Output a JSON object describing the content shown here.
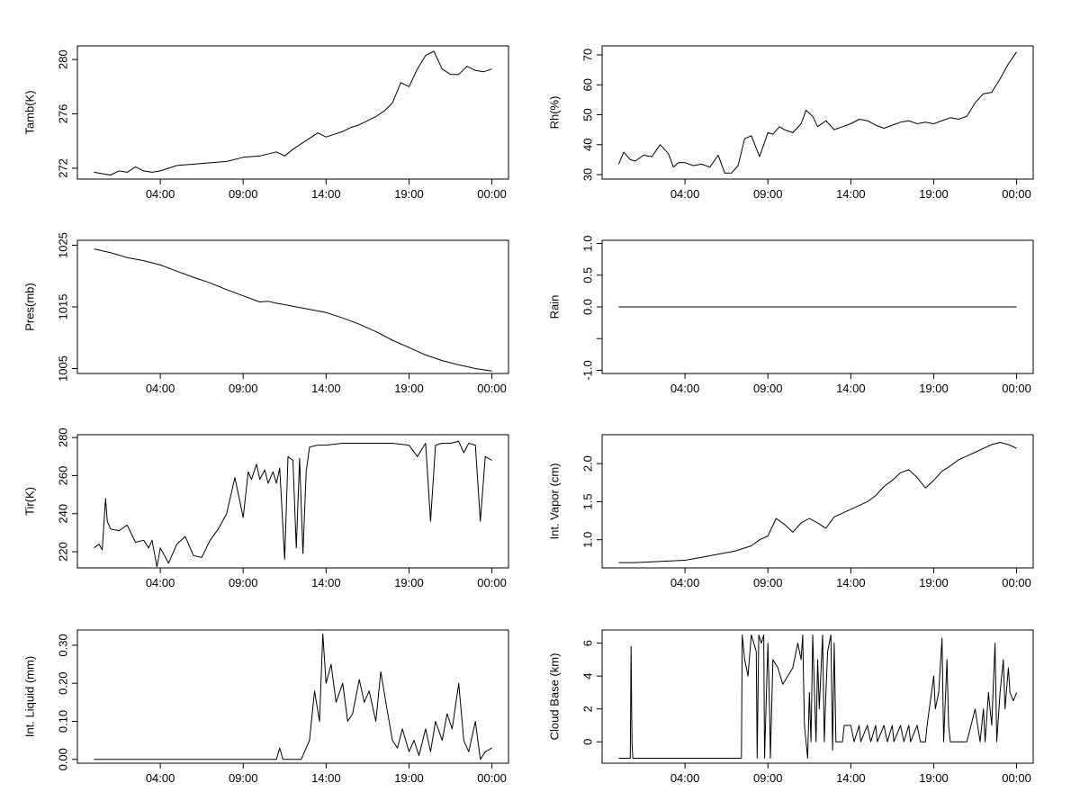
{
  "chart_data": [
    {
      "type": "line",
      "ylabel": "Tamb(K)",
      "x_tick_labels": [
        "04:00",
        "09:00",
        "14:00",
        "19:00",
        "00:00"
      ],
      "x_ticks_hours": [
        4,
        9,
        14,
        19,
        24
      ],
      "xlim_hours": [
        -1,
        25
      ],
      "y_ticks": [
        272,
        276,
        280
      ],
      "ylim": [
        271.2,
        281.0
      ],
      "x_hours": [
        0.0,
        0.5,
        1.0,
        1.5,
        2.0,
        2.5,
        3.0,
        3.5,
        4.0,
        4.5,
        5.0,
        6.0,
        7.0,
        8.0,
        9.0,
        10.0,
        11.0,
        11.5,
        12.0,
        12.5,
        13.0,
        13.5,
        14.0,
        14.5,
        15.0,
        15.5,
        16.0,
        16.5,
        17.0,
        17.5,
        18.0,
        18.5,
        19.0,
        19.5,
        20.0,
        20.5,
        21.0,
        21.5,
        22.0,
        22.5,
        23.0,
        23.5,
        24.0
      ],
      "values": [
        271.7,
        271.6,
        271.5,
        271.8,
        271.7,
        272.1,
        271.8,
        271.7,
        271.8,
        272.0,
        272.2,
        272.3,
        272.4,
        272.5,
        272.8,
        272.9,
        273.2,
        272.9,
        273.4,
        273.8,
        274.2,
        274.6,
        274.3,
        274.5,
        274.7,
        275.0,
        275.2,
        275.5,
        275.8,
        276.2,
        276.8,
        278.3,
        278.0,
        279.3,
        280.3,
        280.6,
        279.3,
        278.9,
        278.9,
        279.5,
        279.2,
        279.1,
        279.3
      ]
    },
    {
      "type": "line",
      "ylabel": "Rh(%)",
      "x_tick_labels": [
        "04:00",
        "09:00",
        "14:00",
        "19:00",
        "00:00"
      ],
      "x_ticks_hours": [
        4,
        9,
        14,
        19,
        24
      ],
      "xlim_hours": [
        -1,
        25
      ],
      "y_ticks": [
        30,
        40,
        50,
        60,
        70
      ],
      "ylim": [
        28.5,
        73.0
      ],
      "x_hours": [
        0.0,
        0.3,
        0.7,
        1.0,
        1.5,
        2.0,
        2.5,
        3.0,
        3.3,
        3.6,
        4.0,
        4.5,
        5.0,
        5.5,
        6.0,
        6.4,
        6.8,
        7.2,
        7.6,
        8.0,
        8.5,
        9.0,
        9.3,
        9.7,
        10.0,
        10.5,
        11.0,
        11.3,
        11.7,
        12.0,
        12.5,
        13.0,
        13.5,
        14.0,
        14.5,
        15.0,
        15.5,
        16.0,
        16.5,
        17.0,
        17.5,
        18.0,
        18.5,
        19.0,
        19.5,
        20.0,
        20.5,
        21.0,
        21.5,
        22.0,
        22.5,
        23.0,
        23.5,
        24.0
      ],
      "values": [
        33.5,
        37.5,
        35.0,
        34.5,
        36.5,
        36.0,
        40.0,
        37.0,
        32.5,
        34.0,
        34.0,
        33.0,
        33.5,
        32.5,
        36.5,
        30.5,
        30.5,
        33.0,
        42.0,
        43.0,
        36.0,
        44.0,
        43.5,
        46.0,
        45.0,
        44.0,
        47.0,
        51.5,
        49.5,
        46.0,
        48.0,
        45.0,
        46.0,
        47.0,
        48.5,
        48.0,
        46.5,
        45.5,
        46.5,
        47.5,
        48.0,
        47.0,
        47.5,
        47.0,
        48.0,
        49.0,
        48.5,
        49.5,
        54.0,
        57.0,
        57.5,
        62.0,
        67.0,
        71.0
      ]
    },
    {
      "type": "line",
      "ylabel": "Pres(mb)",
      "x_tick_labels": [
        "04:00",
        "09:00",
        "14:00",
        "19:00",
        "00:00"
      ],
      "x_ticks_hours": [
        4,
        9,
        14,
        19,
        24
      ],
      "xlim_hours": [
        -1,
        25
      ],
      "y_ticks": [
        1005,
        1015,
        1025
      ],
      "ylim": [
        1004.2,
        1025.8
      ],
      "x_hours": [
        0.0,
        1.0,
        2.0,
        3.0,
        4.0,
        5.0,
        6.0,
        7.0,
        8.0,
        9.0,
        10.0,
        10.5,
        11.0,
        12.0,
        13.0,
        14.0,
        15.0,
        16.0,
        17.0,
        18.0,
        19.0,
        20.0,
        21.0,
        22.0,
        23.0,
        24.0
      ],
      "values": [
        1024.4,
        1023.8,
        1023.0,
        1022.5,
        1021.8,
        1020.8,
        1019.8,
        1018.9,
        1017.8,
        1016.8,
        1015.8,
        1015.9,
        1015.6,
        1015.1,
        1014.6,
        1014.1,
        1013.2,
        1012.2,
        1011.0,
        1009.6,
        1008.4,
        1007.2,
        1006.3,
        1005.6,
        1005.0,
        1004.6
      ]
    },
    {
      "type": "line",
      "ylabel": "Rain",
      "x_tick_labels": [
        "04:00",
        "09:00",
        "14:00",
        "19:00",
        "00:00"
      ],
      "x_ticks_hours": [
        4,
        9,
        14,
        19,
        24
      ],
      "xlim_hours": [
        -1,
        25
      ],
      "y_ticks": [
        -1.0,
        -0.5,
        0.0,
        0.5,
        1.0
      ],
      "y_tick_labels": [
        "-1.0",
        "",
        "0.0",
        "0.5",
        "1.0"
      ],
      "ylim": [
        -1.05,
        1.05
      ],
      "x_hours": [
        0.0,
        24.0
      ],
      "values": [
        0.0,
        0.0
      ]
    },
    {
      "type": "line",
      "ylabel": "Tir(K)",
      "x_tick_labels": [
        "04:00",
        "09:00",
        "14:00",
        "19:00",
        "00:00"
      ],
      "x_ticks_hours": [
        4,
        9,
        14,
        19,
        24
      ],
      "xlim_hours": [
        -1,
        25
      ],
      "y_ticks": [
        220,
        240,
        260,
        280
      ],
      "ylim": [
        211.5,
        281.5
      ],
      "x_hours": [
        0.0,
        0.3,
        0.5,
        0.7,
        0.8,
        1.0,
        1.5,
        2.0,
        2.5,
        3.0,
        3.3,
        3.5,
        3.8,
        4.0,
        4.5,
        5.0,
        5.5,
        6.0,
        6.5,
        7.0,
        7.5,
        8.0,
        8.5,
        9.0,
        9.3,
        9.5,
        9.8,
        10.0,
        10.3,
        10.5,
        10.8,
        11.0,
        11.2,
        11.5,
        11.7,
        12.0,
        12.2,
        12.4,
        12.6,
        12.8,
        13.0,
        13.5,
        14.0,
        15.0,
        16.0,
        17.0,
        18.0,
        19.0,
        19.5,
        20.0,
        20.3,
        20.6,
        21.0,
        21.5,
        22.0,
        22.3,
        22.6,
        23.0,
        23.3,
        23.6,
        24.0
      ],
      "values": [
        222,
        224,
        221,
        248,
        236,
        232,
        231,
        234,
        225,
        226,
        222,
        226,
        212,
        222,
        214,
        224,
        228,
        218,
        217,
        226,
        232,
        240,
        259,
        238,
        262,
        258,
        266,
        258,
        263,
        256,
        262,
        256,
        264,
        216,
        270,
        268,
        222,
        269,
        219,
        262,
        275,
        276,
        276,
        277,
        277,
        277,
        277,
        276,
        270,
        277,
        236,
        276,
        277,
        277,
        278,
        272,
        277,
        276,
        236,
        270,
        268
      ]
    },
    {
      "type": "line",
      "ylabel": "Int. Vapor (cm)",
      "x_tick_labels": [
        "04:00",
        "09:00",
        "14:00",
        "19:00",
        "00:00"
      ],
      "x_ticks_hours": [
        4,
        9,
        14,
        19,
        24
      ],
      "xlim_hours": [
        -1,
        25
      ],
      "y_ticks": [
        1.0,
        1.5,
        2.0
      ],
      "y_tick_labels": [
        "1.0",
        "1.5",
        "2.0"
      ],
      "ylim": [
        0.63,
        2.38
      ],
      "x_hours": [
        0.0,
        1.0,
        2.0,
        3.0,
        4.0,
        5.0,
        6.0,
        7.0,
        8.0,
        8.5,
        9.0,
        9.5,
        10.0,
        10.5,
        11.0,
        11.5,
        12.0,
        12.5,
        13.0,
        13.5,
        14.0,
        14.5,
        15.0,
        15.5,
        16.0,
        16.5,
        17.0,
        17.5,
        18.0,
        18.5,
        19.0,
        19.5,
        20.0,
        20.5,
        21.0,
        21.5,
        22.0,
        22.5,
        23.0,
        23.5,
        24.0
      ],
      "values": [
        0.7,
        0.7,
        0.71,
        0.72,
        0.73,
        0.77,
        0.81,
        0.85,
        0.92,
        1.0,
        1.05,
        1.28,
        1.2,
        1.1,
        1.22,
        1.28,
        1.22,
        1.15,
        1.3,
        1.35,
        1.4,
        1.45,
        1.5,
        1.58,
        1.7,
        1.78,
        1.88,
        1.92,
        1.82,
        1.68,
        1.78,
        1.9,
        1.97,
        2.05,
        2.1,
        2.15,
        2.2,
        2.25,
        2.28,
        2.25,
        2.2
      ]
    },
    {
      "type": "line",
      "ylabel": "Int. Liquid (mm)",
      "x_tick_labels": [
        "04:00",
        "09:00",
        "14:00",
        "19:00",
        "00:00"
      ],
      "x_ticks_hours": [
        4,
        9,
        14,
        19,
        24
      ],
      "xlim_hours": [
        -1,
        25
      ],
      "y_ticks": [
        0.0,
        0.1,
        0.2,
        0.3
      ],
      "y_tick_labels": [
        "0.00",
        "0.10",
        "0.20",
        "0.30"
      ],
      "ylim": [
        -0.01,
        0.34
      ],
      "x_hours": [
        0.0,
        11.0,
        11.2,
        11.4,
        11.6,
        12.0,
        12.5,
        13.0,
        13.3,
        13.6,
        13.8,
        14.0,
        14.3,
        14.6,
        15.0,
        15.3,
        15.6,
        16.0,
        16.3,
        16.6,
        17.0,
        17.3,
        17.6,
        18.0,
        18.3,
        18.6,
        19.0,
        19.3,
        19.6,
        20.0,
        20.3,
        20.6,
        21.0,
        21.3,
        21.6,
        22.0,
        22.3,
        22.6,
        23.0,
        23.3,
        23.6,
        24.0
      ],
      "values": [
        0.0,
        0.0,
        0.03,
        0.0,
        0.0,
        0.0,
        0.0,
        0.05,
        0.18,
        0.1,
        0.33,
        0.2,
        0.25,
        0.15,
        0.2,
        0.1,
        0.12,
        0.21,
        0.15,
        0.18,
        0.1,
        0.23,
        0.15,
        0.05,
        0.03,
        0.08,
        0.02,
        0.05,
        0.01,
        0.08,
        0.02,
        0.1,
        0.05,
        0.12,
        0.08,
        0.2,
        0.05,
        0.02,
        0.1,
        0.0,
        0.02,
        0.03
      ]
    },
    {
      "type": "line",
      "ylabel": "Cloud Base (km)",
      "x_tick_labels": [
        "04:00",
        "09:00",
        "14:00",
        "19:00",
        "00:00"
      ],
      "x_ticks_hours": [
        4,
        9,
        14,
        19,
        24
      ],
      "xlim_hours": [
        -1,
        25
      ],
      "y_ticks": [
        0,
        2,
        4,
        6
      ],
      "ylim": [
        -1.3,
        6.8
      ],
      "x_hours": [
        0.0,
        0.7,
        0.75,
        0.8,
        0.85,
        7.4,
        7.45,
        7.6,
        7.8,
        8.0,
        8.3,
        8.35,
        8.45,
        8.6,
        8.75,
        8.8,
        9.0,
        9.1,
        9.15,
        9.3,
        9.6,
        9.9,
        10.2,
        10.5,
        10.8,
        11.0,
        11.1,
        11.2,
        11.4,
        11.5,
        11.6,
        11.7,
        11.9,
        12.0,
        12.1,
        12.3,
        12.4,
        12.5,
        12.6,
        12.8,
        12.9,
        13.0,
        13.1,
        13.5,
        13.6,
        14.0,
        14.2,
        14.5,
        14.6,
        15.0,
        15.2,
        15.5,
        15.6,
        16.0,
        16.2,
        16.5,
        16.6,
        17.0,
        17.2,
        17.5,
        17.6,
        18.0,
        18.2,
        18.5,
        18.6,
        19.0,
        19.1,
        19.3,
        19.5,
        19.6,
        19.8,
        19.9,
        20.0,
        20.2,
        20.5,
        20.8,
        21.0,
        21.5,
        21.8,
        22.0,
        22.1,
        22.3,
        22.5,
        22.7,
        22.8,
        23.0,
        23.2,
        23.3,
        23.5,
        23.6,
        23.8,
        24.0
      ],
      "values": [
        -1.0,
        -1.0,
        5.8,
        0.0,
        -1.0,
        -1.0,
        6.5,
        5.0,
        4.0,
        6.5,
        5.5,
        -1.0,
        6.5,
        6.0,
        6.5,
        -1.0,
        6.0,
        2.0,
        -1.0,
        5.0,
        4.5,
        3.5,
        4.0,
        4.5,
        6.0,
        5.0,
        6.5,
        1.0,
        -1.0,
        3.0,
        0.0,
        6.5,
        0.0,
        5.0,
        2.0,
        6.5,
        0.0,
        3.0,
        5.5,
        6.5,
        -0.5,
        6.0,
        0.0,
        0.0,
        1.0,
        1.0,
        0.0,
        1.0,
        0.0,
        1.0,
        0.0,
        1.0,
        0.0,
        1.0,
        0.0,
        1.0,
        0.0,
        1.0,
        0.0,
        1.0,
        0.0,
        1.0,
        0.0,
        0.0,
        1.0,
        4.0,
        2.0,
        3.0,
        6.3,
        0.0,
        5.0,
        1.0,
        0.0,
        0.0,
        0.0,
        0.0,
        0.0,
        2.0,
        0.0,
        2.0,
        0.0,
        3.0,
        1.0,
        6.0,
        0.0,
        3.0,
        5.0,
        2.0,
        4.5,
        3.0,
        2.5,
        3.0
      ]
    }
  ]
}
